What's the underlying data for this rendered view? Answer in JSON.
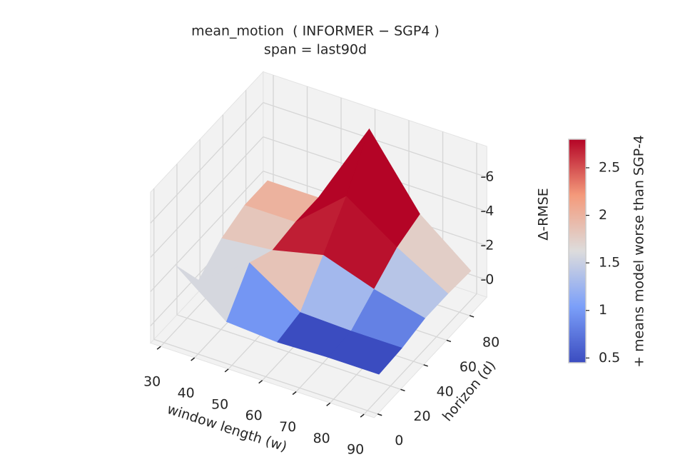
{
  "chart_data": {
    "type": "surface3d",
    "title": "mean_motion  ( INFORMER − SGP4 )",
    "subtitle": "span = last90d",
    "x_label": "window length (w)",
    "y_label": "horizon (d)",
    "z_label": "Δ-RMSE",
    "x": [
      30,
      45,
      60,
      75,
      90
    ],
    "y": [
      10,
      30,
      50,
      70,
      90
    ],
    "z": [
      [
        2.8,
        0.5,
        0.3,
        0.4,
        0.4
      ],
      [
        0.5,
        2.5,
        0.6,
        0.5,
        0.5
      ],
      [
        1.5,
        1.8,
        2.5,
        1.5,
        0.8
      ],
      [
        2.0,
        2.0,
        4.5,
        2.5,
        0.8
      ],
      [
        2.0,
        2.0,
        7.0,
        3.0,
        0.7
      ]
    ],
    "xlim": [
      27,
      93
    ],
    "ylim": [
      -3,
      95
    ],
    "zlim": [
      -1,
      7.8
    ],
    "xticks": [
      30,
      40,
      50,
      60,
      70,
      80,
      90
    ],
    "yticks": [
      0,
      20,
      40,
      60,
      80
    ],
    "zticks": [
      0,
      2,
      4,
      6
    ],
    "colormap": [
      "#3b4cc0",
      "#7b9ff9",
      "#dddcdc",
      "#f49a7b",
      "#b40426"
    ],
    "colorbar": {
      "label": "+ means model worse than SGP-4",
      "lim": [
        0.45,
        2.8
      ],
      "ticks": [
        0.5,
        1.0,
        1.5,
        2.0,
        2.5
      ]
    }
  }
}
